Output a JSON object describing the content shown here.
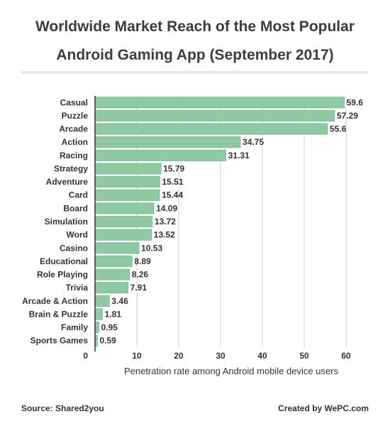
{
  "title": {
    "line1": "Worldwide Market Reach of the Most Popular",
    "line2": "Android Gaming App (September 2017)"
  },
  "footer": {
    "source": "Source: Shared2you",
    "credit": "Created by WePC.com"
  },
  "colors": {
    "bar": "#8fc9a4",
    "bar_stroke": "#6fae86",
    "gridline": "#cccccc",
    "axis": "#333333",
    "text": "#333333"
  },
  "chart_data": {
    "type": "bar",
    "orientation": "horizontal",
    "categories": [
      "Casual",
      "Puzzle",
      "Arcade",
      "Action",
      "Racing",
      "Strategy",
      "Adventure",
      "Card",
      "Board",
      "Simulation",
      "Word",
      "Casino",
      "Educational",
      "Role Playing",
      "Trivia",
      "Arcade & Action",
      "Brain & Puzzle",
      "Family",
      "Sports Games"
    ],
    "values": [
      59.6,
      57.29,
      55.6,
      34.75,
      31.31,
      15.79,
      15.51,
      15.44,
      14.09,
      13.72,
      13.52,
      10.53,
      8.89,
      8.26,
      7.91,
      3.46,
      1.81,
      0.95,
      0.59
    ],
    "xlabel": "Penetration rate among Android mobile device users",
    "ylabel": "",
    "xlim": [
      0,
      60
    ],
    "xticks": [
      0,
      10,
      20,
      30,
      40,
      50,
      60
    ],
    "grid": true,
    "legend": "none"
  }
}
